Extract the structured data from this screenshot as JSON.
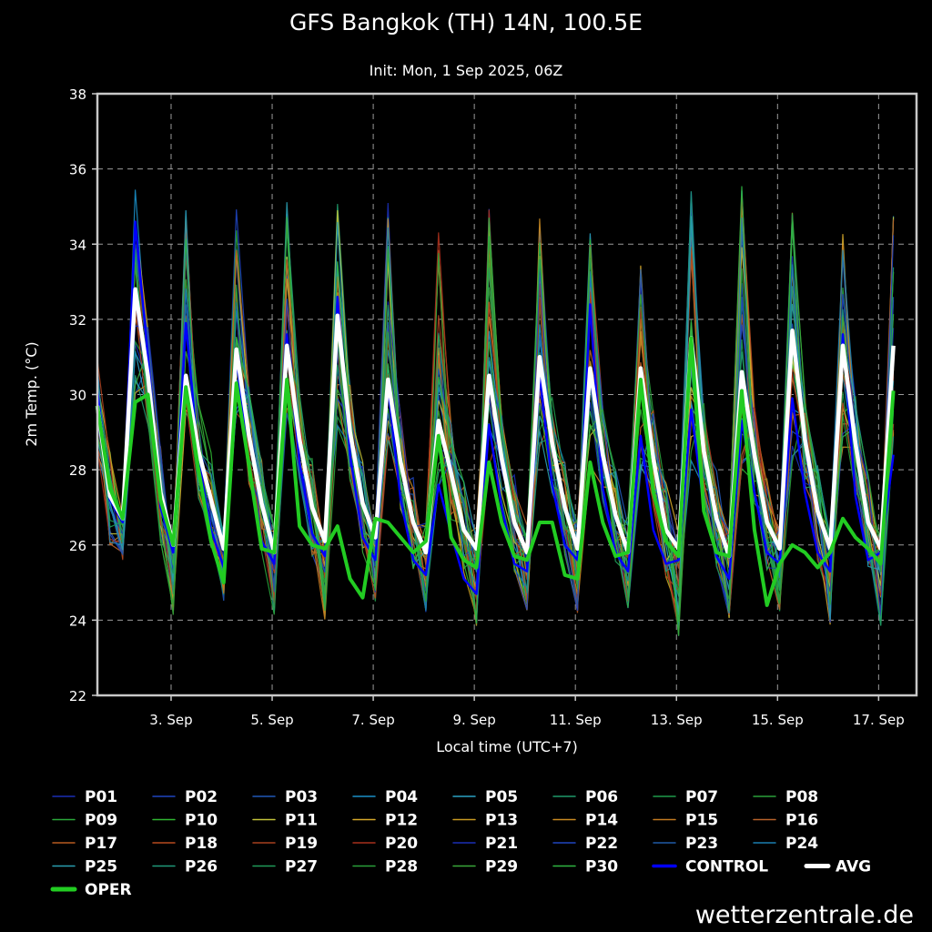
{
  "chart_data": {
    "type": "line",
    "title": "GFS Bangkok (TH) 14N, 100.5E",
    "subtitle": "Init: Mon, 1 Sep 2025, 06Z",
    "xlabel": "Local time (UTC+7)",
    "ylabel": "2m Temp. (°C)",
    "ylim": [
      22,
      38
    ],
    "yticks": [
      "22",
      "24",
      "26",
      "28",
      "30",
      "32",
      "34",
      "36",
      "38"
    ],
    "xlim": [
      "2025-09-01 13:00",
      "2025-09-17 18:00"
    ],
    "xticks": [
      {
        "label": "3. Sep",
        "t": "2025-09-03 00:00"
      },
      {
        "label": "5. Sep",
        "t": "2025-09-05 00:00"
      },
      {
        "label": "7. Sep",
        "t": "2025-09-07 00:00"
      },
      {
        "label": "9. Sep",
        "t": "2025-09-09 00:00"
      },
      {
        "label": "11. Sep",
        "t": "2025-09-11 00:00"
      },
      {
        "label": "13. Sep",
        "t": "2025-09-13 00:00"
      },
      {
        "label": "15. Sep",
        "t": "2025-09-15 00:00"
      },
      {
        "label": "17. Sep",
        "t": "2025-09-17 00:00"
      }
    ],
    "grid": true,
    "time_step_hours": 6,
    "x_start": "2025-09-01 13:00",
    "series": [
      {
        "name": "AVG",
        "color": "#ffffff",
        "values": [
          29.7,
          27.3,
          26.7,
          32.8,
          30.5,
          27.4,
          26.0,
          30.5,
          28.5,
          27.2,
          25.9,
          31.2,
          28.9,
          27.1,
          25.8,
          31.3,
          28.8,
          27.0,
          26.1,
          32.1,
          29.0,
          27.1,
          26.2,
          30.4,
          28.2,
          26.6,
          25.8,
          29.3,
          27.9,
          26.4,
          25.9,
          30.5,
          28.3,
          26.6,
          25.8,
          31.0,
          28.7,
          27.0,
          25.9,
          30.7,
          28.4,
          26.8,
          25.8,
          30.7,
          28.3,
          26.4,
          25.9,
          31.5,
          28.5,
          26.7,
          25.7,
          30.6,
          28.4,
          26.6,
          25.9,
          31.7,
          28.8,
          26.9,
          25.9,
          31.3,
          28.7,
          26.6,
          25.9,
          31.3
        ]
      },
      {
        "name": "OPER",
        "color": "#22cc22",
        "values": [
          29.7,
          27.5,
          26.7,
          29.8,
          30.0,
          27.2,
          26.0,
          30.2,
          28.0,
          26.1,
          25.0,
          30.3,
          28.1,
          25.9,
          25.8,
          30.4,
          26.5,
          26.0,
          25.9,
          26.5,
          25.1,
          24.6,
          26.7,
          26.6,
          26.2,
          25.8,
          26.1,
          28.9,
          26.2,
          25.6,
          25.4,
          28.2,
          26.6,
          25.7,
          25.6,
          26.6,
          26.6,
          25.2,
          25.1,
          28.2,
          26.6,
          25.7,
          25.8,
          30.4,
          27.4,
          26.1,
          25.7,
          31.5,
          26.9,
          25.8,
          25.7,
          30.1,
          26.4,
          24.4,
          25.5,
          26.0,
          25.8,
          25.4,
          25.8,
          26.7,
          26.2,
          25.9,
          25.5,
          30.1
        ]
      },
      {
        "name": "CONTROL",
        "color": "#0000ff",
        "values": [
          30.1,
          27.2,
          26.6,
          34.6,
          31.0,
          27.0,
          25.8,
          31.9,
          28.3,
          26.4,
          25.4,
          31.0,
          28.0,
          26.1,
          25.5,
          31.6,
          28.2,
          26.3,
          25.7,
          32.6,
          28.4,
          26.2,
          25.6,
          30.2,
          27.2,
          25.6,
          25.2,
          27.6,
          26.3,
          25.1,
          24.7,
          29.2,
          27.0,
          25.5,
          25.3,
          30.5,
          27.6,
          26.0,
          25.6,
          32.4,
          27.5,
          25.8,
          25.3,
          28.9,
          26.4,
          25.5,
          25.6,
          29.6,
          27.0,
          25.7,
          25.1,
          29.3,
          27.4,
          25.8,
          25.5,
          29.9,
          27.4,
          25.8,
          25.3,
          31.6,
          27.3,
          25.6,
          25.8,
          28.4
        ]
      }
    ],
    "ensemble": {
      "names": [
        "P01",
        "P02",
        "P03",
        "P04",
        "P05",
        "P06",
        "P07",
        "P08",
        "P09",
        "P10",
        "P11",
        "P12",
        "P13",
        "P14",
        "P15",
        "P16",
        "P17",
        "P18",
        "P19",
        "P20",
        "P21",
        "P22",
        "P23",
        "P24",
        "P25",
        "P26",
        "P27",
        "P28",
        "P29",
        "P30"
      ],
      "colors": [
        "#1a2fb5",
        "#1f45c0",
        "#2158b8",
        "#1a8fc8",
        "#2aa2c4",
        "#1f9a6a",
        "#1f9c4a",
        "#2aa03a",
        "#2aa83a",
        "#2fb532",
        "#c2c23a",
        "#d6a82a",
        "#c89a22",
        "#c98a22",
        "#c27a20",
        "#b8622a",
        "#b85a20",
        "#b84a1f",
        "#a8401f",
        "#a8301c",
        "#1a2fb5",
        "#2145c0",
        "#215aa8",
        "#1a7fb0",
        "#2a9db0",
        "#1f9a7a",
        "#1f9c5a",
        "#2aa03a",
        "#3aa83a",
        "#2fb542"
      ],
      "daily_max_range": [
        [
          30.0,
          35.5
        ],
        [
          29.5,
          35.1
        ],
        [
          29.5,
          35.1
        ],
        [
          29.5,
          35.2
        ],
        [
          29.0,
          35.1
        ],
        [
          28.5,
          35.3
        ],
        [
          27.5,
          34.4
        ],
        [
          28.0,
          35.0
        ],
        [
          28.5,
          35.1
        ],
        [
          28.0,
          34.8
        ],
        [
          27.5,
          33.5
        ],
        [
          28.0,
          35.5
        ],
        [
          28.0,
          35.6
        ],
        [
          28.0,
          35.0
        ],
        [
          28.5,
          35.1
        ],
        [
          28.5,
          35.1
        ]
      ],
      "daily_min_range": [
        [
          25.6,
          26.8
        ],
        [
          24.1,
          26.5
        ],
        [
          24.5,
          26.5
        ],
        [
          24.1,
          26.5
        ],
        [
          24.0,
          26.6
        ],
        [
          24.5,
          26.6
        ],
        [
          24.2,
          26.6
        ],
        [
          23.8,
          26.6
        ],
        [
          24.2,
          26.6
        ],
        [
          24.1,
          26.7
        ],
        [
          24.2,
          26.8
        ],
        [
          23.4,
          26.6
        ],
        [
          23.9,
          26.5
        ],
        [
          24.0,
          26.6
        ],
        [
          23.6,
          26.4
        ],
        [
          23.6,
          26.4
        ]
      ]
    }
  },
  "legend": [
    {
      "label": "P01",
      "color": "#1a2fb5"
    },
    {
      "label": "P02",
      "color": "#1f45c0"
    },
    {
      "label": "P03",
      "color": "#2158b8"
    },
    {
      "label": "P04",
      "color": "#1a8fc8"
    },
    {
      "label": "P05",
      "color": "#2aa2c4"
    },
    {
      "label": "P06",
      "color": "#1f9a6a"
    },
    {
      "label": "P07",
      "color": "#1f9c4a"
    },
    {
      "label": "P08",
      "color": "#2aa03a"
    },
    {
      "label": "P09",
      "color": "#2aa83a"
    },
    {
      "label": "P10",
      "color": "#2fb532"
    },
    {
      "label": "P11",
      "color": "#c2c23a"
    },
    {
      "label": "P12",
      "color": "#d6a82a"
    },
    {
      "label": "P13",
      "color": "#c89a22"
    },
    {
      "label": "P14",
      "color": "#c98a22"
    },
    {
      "label": "P15",
      "color": "#c27a20"
    },
    {
      "label": "P16",
      "color": "#b8622a"
    },
    {
      "label": "P17",
      "color": "#b85a20"
    },
    {
      "label": "P18",
      "color": "#b84a1f"
    },
    {
      "label": "P19",
      "color": "#a8401f"
    },
    {
      "label": "P20",
      "color": "#a8301c"
    },
    {
      "label": "P21",
      "color": "#1a2fb5"
    },
    {
      "label": "P22",
      "color": "#2145c0"
    },
    {
      "label": "P23",
      "color": "#215aa8"
    },
    {
      "label": "P24",
      "color": "#1a7fb0"
    },
    {
      "label": "P25",
      "color": "#2a9db0"
    },
    {
      "label": "P26",
      "color": "#1f9a7a"
    },
    {
      "label": "P27",
      "color": "#1f9c5a"
    },
    {
      "label": "P28",
      "color": "#2aa03a"
    },
    {
      "label": "P29",
      "color": "#3aa83a"
    },
    {
      "label": "P30",
      "color": "#2fb542"
    },
    {
      "label": "CONTROL",
      "color": "#0000ff"
    },
    {
      "label": "AVG",
      "color": "#ffffff"
    },
    {
      "label": "OPER",
      "color": "#22cc22"
    }
  ],
  "brand": "wetterzentrale.de"
}
